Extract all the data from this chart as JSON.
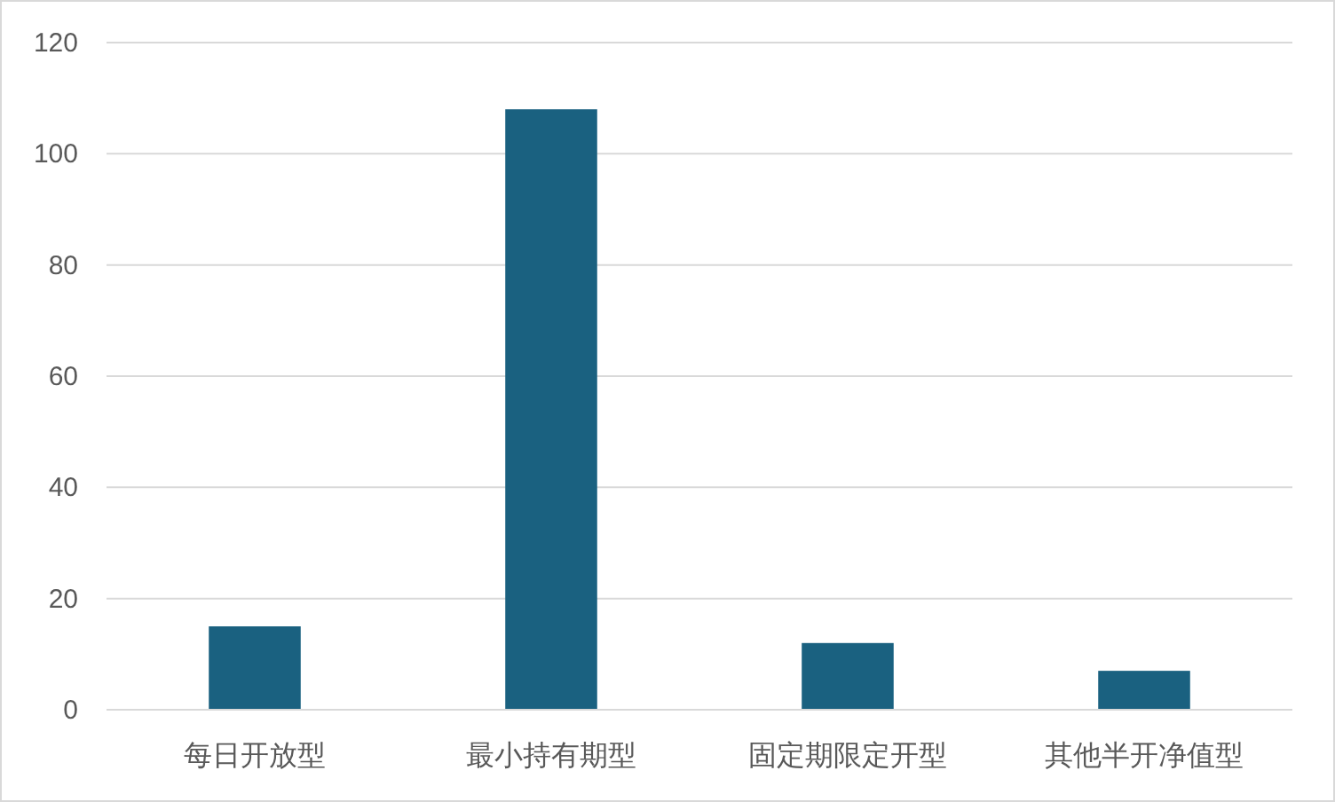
{
  "chart_data": {
    "type": "bar",
    "categories": [
      "每日开放型",
      "最小持有期型",
      "固定期限定开型",
      "其他半开净值型"
    ],
    "values": [
      15,
      108,
      12,
      7
    ],
    "color": "#1a6180",
    "ylim": [
      0,
      120
    ],
    "yticks": [
      0,
      20,
      40,
      60,
      80,
      100,
      120
    ],
    "grid": "y"
  }
}
